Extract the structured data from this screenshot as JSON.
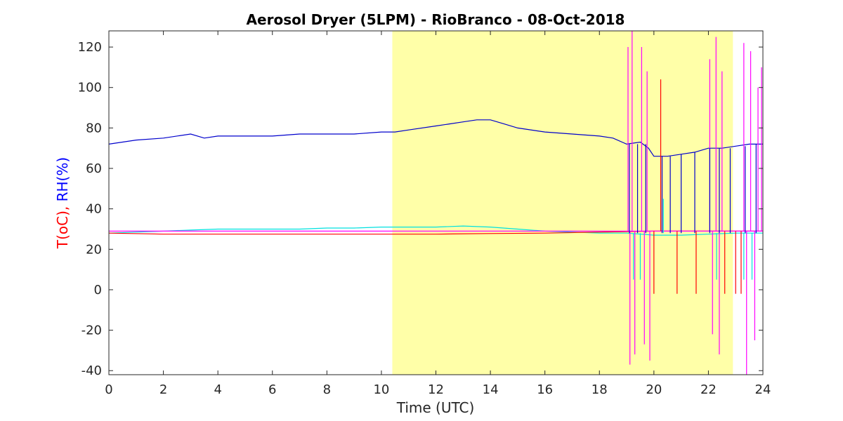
{
  "chart_data": {
    "type": "line",
    "title": "Aerosol Dryer (5LPM) - RioBranco - 08-Oct-2018",
    "xlabel": "Time (UTC)",
    "ylabel_parts": [
      {
        "text": "T(oC),",
        "color": "#ff0000"
      },
      {
        "text": "RH(%)",
        "color": "#0000ff"
      }
    ],
    "xlim": [
      0,
      24
    ],
    "ylim": [
      -42,
      128
    ],
    "xticks": [
      0,
      2,
      4,
      6,
      8,
      10,
      12,
      14,
      16,
      18,
      20,
      22,
      24
    ],
    "yticks": [
      -40,
      -20,
      0,
      20,
      40,
      60,
      80,
      100,
      120
    ],
    "grid": false,
    "shaded_region": {
      "x": [
        10.4,
        22.9
      ],
      "color": "#ffffa8"
    },
    "series": [
      {
        "color": "#0000cc",
        "x": [
          0,
          1,
          2,
          3,
          3.5,
          4,
          5,
          6,
          7,
          8,
          9,
          10,
          10.5,
          11,
          12,
          12.5,
          13,
          13.5,
          14,
          14.5,
          15,
          16,
          17,
          18,
          18.5,
          19,
          19.5,
          19.8,
          20,
          20.5,
          21,
          21.5,
          22,
          22.5,
          23,
          23.5,
          24
        ],
        "y": [
          72,
          74,
          75,
          77,
          75,
          76,
          76,
          76,
          77,
          77,
          77,
          78,
          78,
          79,
          81,
          82,
          83,
          84,
          84,
          82,
          80,
          78,
          77,
          76,
          75,
          72,
          73,
          70,
          66,
          66,
          67,
          68,
          70,
          70,
          71,
          72,
          72
        ]
      },
      {
        "color": "#00e0e0",
        "x": [
          0,
          1,
          2,
          3,
          4,
          5,
          6,
          7,
          8,
          9,
          10,
          11,
          12,
          13,
          14,
          15,
          16,
          17,
          18,
          19,
          20,
          21,
          22,
          23,
          24
        ],
        "y": [
          28,
          28.5,
          29,
          29.5,
          30,
          30,
          30,
          30,
          30.5,
          30.5,
          31,
          31,
          31,
          31.5,
          31,
          30,
          29,
          28.5,
          28,
          28,
          27,
          27,
          27.5,
          28,
          28
        ]
      },
      {
        "color": "#ff0000",
        "x": [
          0,
          2,
          4,
          6,
          8,
          10,
          12,
          14,
          16,
          18,
          20,
          22,
          24
        ],
        "y": [
          28,
          27.5,
          27.5,
          27.5,
          27.5,
          27.5,
          27.5,
          27.8,
          28,
          28.5,
          29,
          29,
          29
        ]
      },
      {
        "color": "#ff00ff",
        "x": [
          0,
          4,
          8,
          12,
          16,
          19,
          24
        ],
        "y": [
          29,
          29,
          29,
          29,
          29,
          29,
          29
        ]
      }
    ],
    "spikes": [
      {
        "x": 19.05,
        "y1": 29,
        "y2": 120,
        "color": "#ff00ff"
      },
      {
        "x": 19.12,
        "y1": 29,
        "y2": -37,
        "color": "#ff00ff"
      },
      {
        "x": 19.2,
        "y1": 29,
        "y2": 128,
        "color": "#ff00ff"
      },
      {
        "x": 19.3,
        "y1": 29,
        "y2": -32,
        "color": "#ff00ff"
      },
      {
        "x": 19.55,
        "y1": 29,
        "y2": 120,
        "color": "#ff00ff"
      },
      {
        "x": 19.65,
        "y1": 29,
        "y2": -27,
        "color": "#ff00ff"
      },
      {
        "x": 19.75,
        "y1": 29,
        "y2": 108,
        "color": "#ff00ff"
      },
      {
        "x": 19.85,
        "y1": 29,
        "y2": -35,
        "color": "#ff00ff"
      },
      {
        "x": 22.05,
        "y1": 29,
        "y2": 114,
        "color": "#ff00ff"
      },
      {
        "x": 22.15,
        "y1": 29,
        "y2": -22,
        "color": "#ff00ff"
      },
      {
        "x": 22.28,
        "y1": 29,
        "y2": 125,
        "color": "#ff00ff"
      },
      {
        "x": 22.4,
        "y1": 29,
        "y2": -32,
        "color": "#ff00ff"
      },
      {
        "x": 22.5,
        "y1": 29,
        "y2": 108,
        "color": "#ff00ff"
      },
      {
        "x": 23.3,
        "y1": 29,
        "y2": 122,
        "color": "#ff00ff"
      },
      {
        "x": 23.4,
        "y1": 29,
        "y2": -42,
        "color": "#ff00ff"
      },
      {
        "x": 23.55,
        "y1": 29,
        "y2": 118,
        "color": "#ff00ff"
      },
      {
        "x": 23.7,
        "y1": 29,
        "y2": -25,
        "color": "#ff00ff"
      },
      {
        "x": 23.82,
        "y1": 29,
        "y2": 100,
        "color": "#ff00ff"
      },
      {
        "x": 23.95,
        "y1": 29,
        "y2": 110,
        "color": "#ff00ff"
      },
      {
        "x": 20.25,
        "y1": 29,
        "y2": 104,
        "color": "#ff0000"
      },
      {
        "x": 20.0,
        "y1": 29,
        "y2": -2,
        "color": "#ff0000"
      },
      {
        "x": 20.85,
        "y1": 29,
        "y2": -2,
        "color": "#ff0000"
      },
      {
        "x": 21.55,
        "y1": 29,
        "y2": -2,
        "color": "#ff0000"
      },
      {
        "x": 22.6,
        "y1": 29,
        "y2": -2,
        "color": "#ff0000"
      },
      {
        "x": 23.0,
        "y1": 29,
        "y2": -2,
        "color": "#ff0000"
      },
      {
        "x": 23.2,
        "y1": 29,
        "y2": -2,
        "color": "#ff0000"
      },
      {
        "x": 19.25,
        "y1": 28,
        "y2": 5,
        "color": "#00e0e0"
      },
      {
        "x": 19.5,
        "y1": 28,
        "y2": 5,
        "color": "#00e0e0"
      },
      {
        "x": 20.35,
        "y1": 28,
        "y2": 45,
        "color": "#00e0e0"
      },
      {
        "x": 22.3,
        "y1": 28,
        "y2": 5,
        "color": "#00e0e0"
      },
      {
        "x": 23.3,
        "y1": 28,
        "y2": 5,
        "color": "#00e0e0"
      },
      {
        "x": 23.6,
        "y1": 28,
        "y2": 5,
        "color": "#00e0e0"
      },
      {
        "x": 19.1,
        "y1": 72,
        "y2": 28,
        "color": "#0000cc"
      },
      {
        "x": 19.4,
        "y1": 72,
        "y2": 28,
        "color": "#0000cc"
      },
      {
        "x": 19.7,
        "y1": 72,
        "y2": 28,
        "color": "#0000cc"
      },
      {
        "x": 20.3,
        "y1": 66,
        "y2": 28,
        "color": "#0000cc"
      },
      {
        "x": 20.6,
        "y1": 66,
        "y2": 28,
        "color": "#0000cc"
      },
      {
        "x": 21.0,
        "y1": 67,
        "y2": 28,
        "color": "#0000cc"
      },
      {
        "x": 21.5,
        "y1": 68,
        "y2": 28,
        "color": "#0000cc"
      },
      {
        "x": 22.05,
        "y1": 70,
        "y2": 28,
        "color": "#0000cc"
      },
      {
        "x": 22.4,
        "y1": 70,
        "y2": 28,
        "color": "#0000cc"
      },
      {
        "x": 22.8,
        "y1": 70,
        "y2": 28,
        "color": "#0000cc"
      },
      {
        "x": 23.35,
        "y1": 71,
        "y2": 28,
        "color": "#0000cc"
      },
      {
        "x": 23.75,
        "y1": 72,
        "y2": 28,
        "color": "#0000cc"
      }
    ]
  }
}
